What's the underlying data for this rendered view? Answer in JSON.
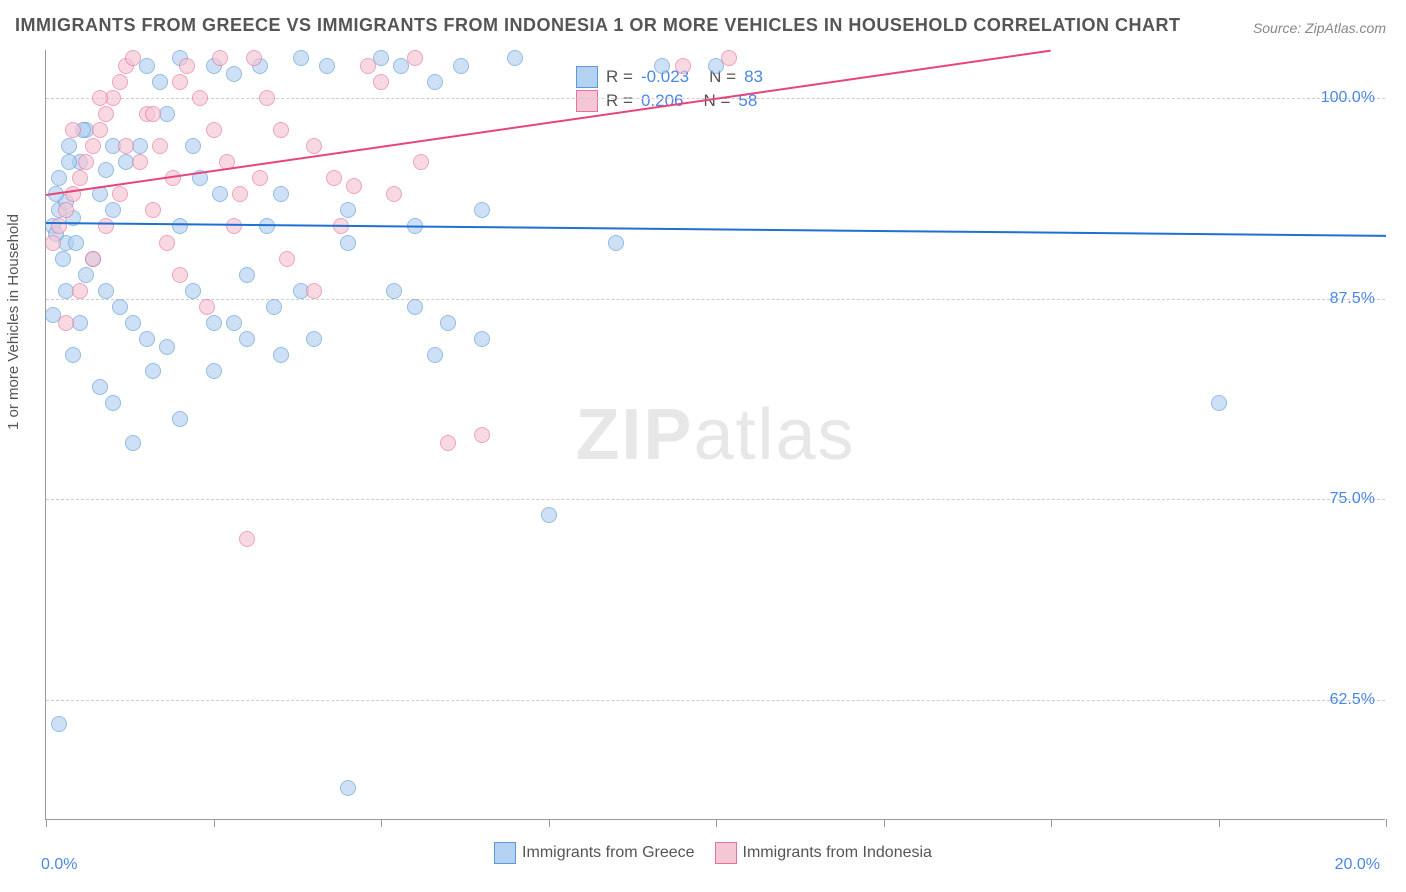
{
  "title": "IMMIGRANTS FROM GREECE VS IMMIGRANTS FROM INDONESIA 1 OR MORE VEHICLES IN HOUSEHOLD CORRELATION CHART",
  "source": "Source: ZipAtlas.com",
  "y_axis_label": "1 or more Vehicles in Household",
  "watermark_a": "ZIP",
  "watermark_b": "atlas",
  "chart": {
    "type": "scatter",
    "xlim": [
      0,
      20
    ],
    "ylim": [
      55,
      103
    ],
    "y_ticks": [
      62.5,
      75.0,
      87.5,
      100.0
    ],
    "y_tick_labels": [
      "62.5%",
      "75.0%",
      "87.5%",
      "100.0%"
    ],
    "x_ticks": [
      0,
      2.5,
      5.0,
      7.5,
      10.0,
      12.5,
      15.0,
      17.5,
      20.0
    ],
    "x_tick_labels": [
      "0.0%",
      "",
      "",
      "",
      "",
      "",
      "",
      "",
      "20.0%"
    ],
    "background_color": "#ffffff",
    "grid_color": "#cccccc",
    "series": [
      {
        "name": "Immigrants from Greece",
        "color_fill": "#b3d1f0",
        "color_stroke": "#5b9bd5",
        "marker_size": 16,
        "opacity": 0.65,
        "r_label": "R =",
        "r_value": "-0.023",
        "n_label": "N =",
        "n_value": "83",
        "trend": {
          "x1": 0,
          "y1": 92.3,
          "x2": 20,
          "y2": 91.5,
          "color": "#1f6fd4",
          "width": 2
        },
        "points": [
          [
            0.1,
            92
          ],
          [
            0.2,
            93
          ],
          [
            0.3,
            91
          ],
          [
            0.15,
            91.5
          ],
          [
            0.4,
            92.5
          ],
          [
            0.25,
            90
          ],
          [
            0.3,
            93.5
          ],
          [
            0.45,
            91
          ],
          [
            0.2,
            95
          ],
          [
            0.5,
            96
          ],
          [
            0.35,
            97
          ],
          [
            0.6,
            98
          ],
          [
            0.8,
            94
          ],
          [
            0.9,
            95.5
          ],
          [
            1.0,
            97
          ],
          [
            1.2,
            96
          ],
          [
            1.5,
            102
          ],
          [
            1.7,
            101
          ],
          [
            2.0,
            102.5
          ],
          [
            2.3,
            95
          ],
          [
            2.5,
            102
          ],
          [
            2.8,
            101.5
          ],
          [
            3.2,
            102
          ],
          [
            3.5,
            94
          ],
          [
            3.8,
            102.5
          ],
          [
            4.2,
            102
          ],
          [
            4.5,
            93
          ],
          [
            5.0,
            102.5
          ],
          [
            5.3,
            102
          ],
          [
            5.8,
            101
          ],
          [
            6.2,
            102
          ],
          [
            7.0,
            102.5
          ],
          [
            0.6,
            89
          ],
          [
            0.9,
            88
          ],
          [
            1.1,
            87
          ],
          [
            1.3,
            86
          ],
          [
            1.5,
            85
          ],
          [
            1.8,
            84.5
          ],
          [
            2.0,
            92
          ],
          [
            2.2,
            88
          ],
          [
            2.5,
            83
          ],
          [
            2.8,
            86
          ],
          [
            3.0,
            85
          ],
          [
            3.3,
            92
          ],
          [
            3.5,
            84
          ],
          [
            3.8,
            88
          ],
          [
            4.0,
            85
          ],
          [
            4.5,
            91
          ],
          [
            5.2,
            88
          ],
          [
            5.5,
            87
          ],
          [
            5.8,
            84
          ],
          [
            6.5,
            93
          ],
          [
            7.5,
            74
          ],
          [
            8.5,
            91
          ],
          [
            9.2,
            102
          ],
          [
            10.0,
            102
          ],
          [
            0.3,
            88
          ],
          [
            0.5,
            86
          ],
          [
            0.8,
            82
          ],
          [
            1.0,
            81
          ],
          [
            1.3,
            78.5
          ],
          [
            1.6,
            83
          ],
          [
            2.0,
            80
          ],
          [
            2.5,
            86
          ],
          [
            0.2,
            61
          ],
          [
            4.5,
            57
          ],
          [
            0.1,
            86.5
          ],
          [
            0.4,
            84
          ],
          [
            0.7,
            90
          ],
          [
            1.0,
            93
          ],
          [
            1.4,
            97
          ],
          [
            1.8,
            99
          ],
          [
            2.2,
            97
          ],
          [
            2.6,
            94
          ],
          [
            3.0,
            89
          ],
          [
            3.4,
            87
          ],
          [
            5.5,
            92
          ],
          [
            6.0,
            86
          ],
          [
            6.5,
            85
          ],
          [
            17.5,
            81
          ],
          [
            0.15,
            94
          ],
          [
            0.35,
            96
          ],
          [
            0.55,
            98
          ]
        ]
      },
      {
        "name": "Immigrants from Indonesia",
        "color_fill": "#f5c6d4",
        "color_stroke": "#e8719e",
        "marker_size": 16,
        "opacity": 0.65,
        "r_label": "R =",
        "r_value": " 0.206",
        "n_label": "N =",
        "n_value": "58",
        "trend": {
          "x1": 0,
          "y1": 94.0,
          "x2": 15,
          "y2": 103.0,
          "color": "#e8447a",
          "width": 2
        },
        "points": [
          [
            0.1,
            91
          ],
          [
            0.2,
            92
          ],
          [
            0.3,
            93
          ],
          [
            0.4,
            94
          ],
          [
            0.5,
            95
          ],
          [
            0.6,
            96
          ],
          [
            0.7,
            97
          ],
          [
            0.8,
            98
          ],
          [
            0.9,
            99
          ],
          [
            1.0,
            100
          ],
          [
            1.1,
            101
          ],
          [
            1.2,
            102
          ],
          [
            1.3,
            102.5
          ],
          [
            1.5,
            99
          ],
          [
            1.7,
            97
          ],
          [
            1.9,
            95
          ],
          [
            2.1,
            102
          ],
          [
            2.3,
            100
          ],
          [
            2.5,
            98
          ],
          [
            2.7,
            96
          ],
          [
            2.9,
            94
          ],
          [
            3.1,
            102.5
          ],
          [
            3.3,
            100
          ],
          [
            3.5,
            98
          ],
          [
            4.0,
            97
          ],
          [
            4.3,
            95
          ],
          [
            4.6,
            94.5
          ],
          [
            5.0,
            101
          ],
          [
            5.5,
            102.5
          ],
          [
            6.0,
            78.5
          ],
          [
            0.3,
            86
          ],
          [
            0.5,
            88
          ],
          [
            0.7,
            90
          ],
          [
            0.9,
            92
          ],
          [
            1.1,
            94
          ],
          [
            1.4,
            96
          ],
          [
            1.6,
            93
          ],
          [
            1.8,
            91
          ],
          [
            2.0,
            89
          ],
          [
            2.4,
            87
          ],
          [
            2.8,
            92
          ],
          [
            3.2,
            95
          ],
          [
            3.6,
            90
          ],
          [
            4.0,
            88
          ],
          [
            4.4,
            92
          ],
          [
            4.8,
            102
          ],
          [
            5.2,
            94
          ],
          [
            5.6,
            96
          ],
          [
            6.5,
            79
          ],
          [
            3.0,
            72.5
          ],
          [
            0.4,
            98
          ],
          [
            0.8,
            100
          ],
          [
            1.2,
            97
          ],
          [
            1.6,
            99
          ],
          [
            2.0,
            101
          ],
          [
            2.6,
            102.5
          ],
          [
            9.5,
            102
          ],
          [
            10.2,
            102.5
          ]
        ]
      }
    ]
  }
}
